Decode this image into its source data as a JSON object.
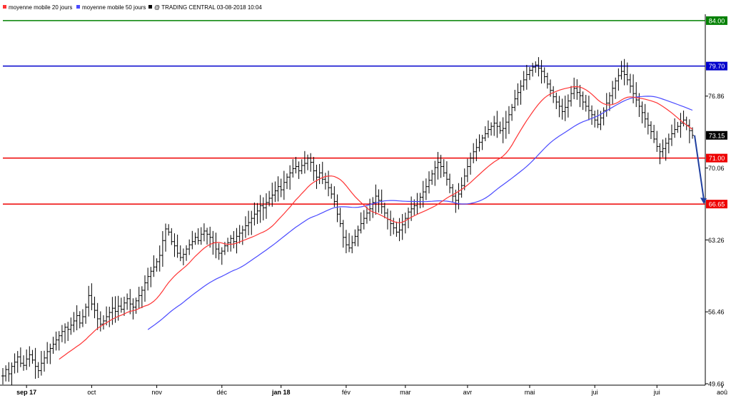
{
  "legend": {
    "ma20_label": "moyenne mobile 20 jours",
    "ma50_label": "moyenne mobile 50 jours",
    "source_label": "@ TRADING CENTRAL 03-08-2018 10:04"
  },
  "colors": {
    "ma20": "#ff3333",
    "ma50": "#4a4aff",
    "green_level": "#008000",
    "blue_level": "#0000cc",
    "red_level": "#ee0000",
    "forecast_arrow": "#1f3f9f",
    "last_price_bg": "#000000",
    "axis": "#000000"
  },
  "chart_data": {
    "type": "bar",
    "subtype": "ohlc",
    "ylim": [
      49.66,
      84.6
    ],
    "y_ticks": [
      49.66,
      56.46,
      63.26,
      70.06,
      76.86
    ],
    "x_month_labels": [
      {
        "label": "sep 17",
        "bold": true,
        "index": 8
      },
      {
        "label": "oct",
        "bold": false,
        "index": 30
      },
      {
        "label": "nov",
        "bold": false,
        "index": 52
      },
      {
        "label": "déc",
        "bold": false,
        "index": 74
      },
      {
        "label": "jan 18",
        "bold": true,
        "index": 94
      },
      {
        "label": "fév",
        "bold": false,
        "index": 116
      },
      {
        "label": "mar",
        "bold": false,
        "index": 136
      },
      {
        "label": "avr",
        "bold": false,
        "index": 157
      },
      {
        "label": "mai",
        "bold": false,
        "index": 178
      },
      {
        "label": "jui",
        "bold": false,
        "index": 200
      },
      {
        "label": "jui",
        "bold": false,
        "index": 221
      },
      {
        "label": "aoû",
        "bold": false,
        "index": 243
      }
    ],
    "levels": [
      {
        "value": 84.0,
        "label": "84.00",
        "color": "#008000",
        "type": "resistance"
      },
      {
        "value": 79.7,
        "label": "79.70",
        "color": "#0000cc",
        "type": "resistance"
      },
      {
        "value": 71.0,
        "label": "71.00",
        "color": "#ee0000",
        "type": "support"
      },
      {
        "value": 66.65,
        "label": "66.65",
        "color": "#ee0000",
        "type": "support"
      }
    ],
    "last_price": {
      "value": 73.15,
      "label": "73.15"
    },
    "forecast_target": 66.65,
    "close": [
      50.4,
      51.0,
      50.6,
      51.3,
      51.7,
      52.2,
      51.6,
      51.4,
      52.0,
      52.4,
      51.9,
      51.3,
      50.9,
      51.6,
      52.1,
      52.7,
      53.0,
      53.4,
      53.8,
      54.2,
      54.6,
      55.0,
      54.8,
      55.2,
      55.6,
      56.1,
      55.4,
      56.0,
      56.9,
      58.0,
      57.2,
      56.6,
      55.8,
      55.3,
      55.6,
      56.0,
      56.4,
      56.8,
      56.5,
      57.0,
      56.7,
      57.3,
      57.7,
      57.2,
      56.9,
      57.5,
      58.0,
      58.5,
      59.2,
      59.8,
      60.3,
      60.7,
      61.2,
      61.8,
      63.2,
      64.3,
      64.0,
      63.1,
      62.7,
      62.0,
      61.6,
      61.9,
      62.4,
      62.8,
      63.1,
      63.5,
      63.2,
      63.8,
      64.1,
      63.8,
      63.5,
      63.0,
      62.4,
      62.0,
      62.2,
      62.7,
      63.0,
      63.4,
      63.1,
      63.6,
      63.9,
      64.2,
      64.6,
      64.9,
      65.3,
      65.7,
      66.0,
      66.5,
      66.3,
      66.8,
      67.2,
      67.5,
      67.9,
      68.3,
      68.0,
      68.7,
      69.2,
      69.6,
      70.0,
      70.2,
      69.8,
      70.3,
      70.5,
      71.0,
      70.6,
      69.8,
      69.2,
      69.6,
      69.0,
      68.7,
      68.2,
      67.6,
      66.9,
      65.7,
      64.8,
      63.5,
      62.8,
      62.5,
      63.0,
      63.6,
      64.2,
      64.8,
      65.3,
      65.8,
      66.2,
      66.8,
      67.4,
      67.0,
      66.4,
      65.8,
      65.2,
      64.8,
      64.4,
      64.0,
      64.2,
      64.7,
      65.3,
      65.9,
      66.2,
      66.5,
      66.9,
      67.3,
      67.8,
      68.3,
      68.9,
      69.5,
      70.1,
      70.6,
      70.2,
      69.6,
      69.0,
      68.2,
      67.4,
      67.0,
      67.6,
      68.4,
      69.3,
      70.2,
      71.0,
      71.6,
      72.0,
      72.5,
      72.9,
      73.3,
      73.7,
      74.0,
      74.3,
      74.0,
      73.6,
      73.8,
      74.4,
      75.1,
      75.8,
      76.6,
      77.2,
      77.8,
      78.4,
      78.9,
      79.3,
      79.6,
      79.8,
      79.5,
      79.2,
      78.7,
      78.0,
      77.4,
      76.8,
      76.3,
      75.9,
      75.4,
      75.8,
      76.4,
      77.1,
      77.6,
      77.2,
      76.9,
      76.3,
      75.9,
      75.5,
      75.1,
      74.6,
      74.2,
      74.8,
      75.5,
      76.2,
      76.9,
      77.6,
      78.3,
      78.8,
      79.2,
      78.9,
      78.4,
      77.8,
      77.1,
      76.5,
      75.9,
      75.3,
      74.7,
      74.1,
      73.5,
      72.8,
      72.1,
      71.6,
      71.9,
      72.4,
      72.8,
      73.3,
      73.7,
      74.0,
      74.3,
      74.6,
      74.1,
      73.6,
      73.15
    ]
  }
}
